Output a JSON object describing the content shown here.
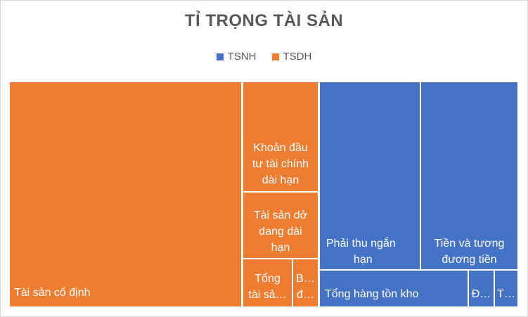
{
  "chart_data": {
    "type": "treemap",
    "title": "TỈ TRỌNG TÀI SẢN",
    "legend_position": "top",
    "series": [
      {
        "name": "TSNH",
        "color": "#4472C4"
      },
      {
        "name": "TSDH",
        "color": "#ED7D31"
      }
    ],
    "tiles": [
      {
        "group": "TSDH",
        "label": "Tài sản cố định"
      },
      {
        "group": "TSDH",
        "label": "Khoản đầu tư tài chính dài hạn",
        "display": [
          "Khoản đầu",
          "tư tài chính",
          "dài hạn"
        ]
      },
      {
        "group": "TSDH",
        "label": "Tài sản dở dang dài hạn",
        "display": [
          "Tài sản dở",
          "dang dài",
          "hạn"
        ]
      },
      {
        "group": "TSDH",
        "label": "Tổng tài sản",
        "display": [
          "Tổng",
          "tài sả…"
        ]
      },
      {
        "group": "TSDH",
        "label": "B…",
        "display": [
          "B…",
          "đ…"
        ]
      },
      {
        "group": "TSNH",
        "label": "Phải thu ngắn hạn",
        "display": [
          "Phải thu ngắn",
          "hạn"
        ]
      },
      {
        "group": "TSNH",
        "label": "Tiền và tương đương tiền",
        "display": [
          "Tiền và tương",
          "đương tiền"
        ]
      },
      {
        "group": "TSNH",
        "label": "Tổng hàng tồn kho"
      },
      {
        "group": "TSNH",
        "label": "Đ…"
      },
      {
        "group": "TSNH",
        "label": "T…"
      }
    ]
  }
}
